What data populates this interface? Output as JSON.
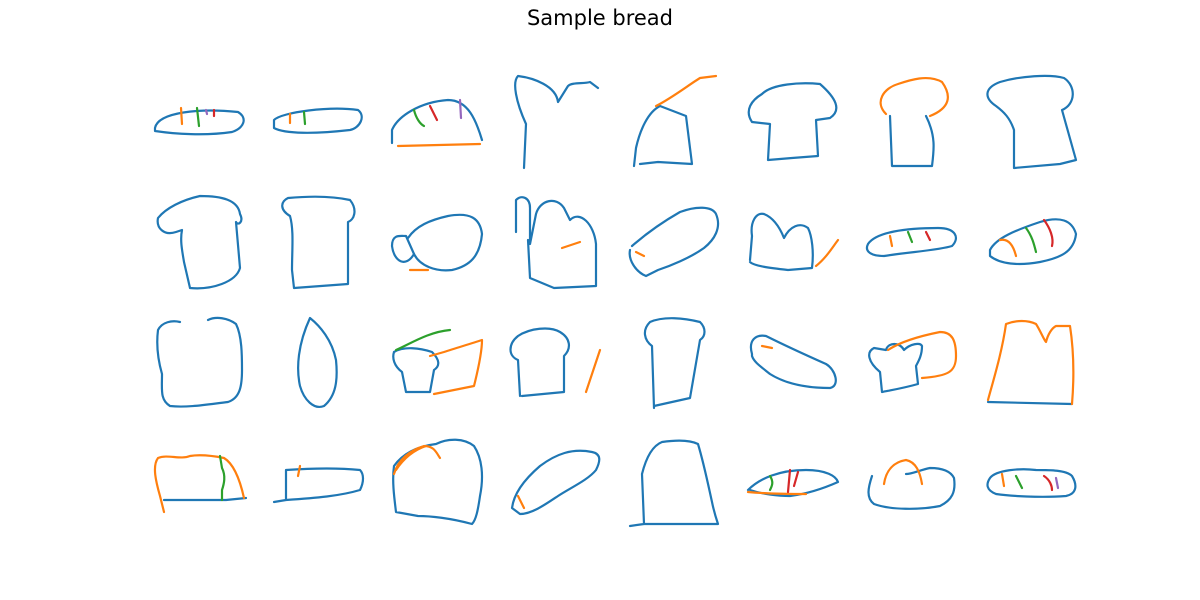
{
  "figure": {
    "title": "Sample bread"
  },
  "stroke_colors": {
    "blue": "#1f77b4",
    "orange": "#ff7f0e",
    "green": "#2ca02c",
    "red": "#d62728",
    "purple": "#9467bd"
  },
  "grid": {
    "rows": 4,
    "columns": 8,
    "sample_count": 32
  }
}
